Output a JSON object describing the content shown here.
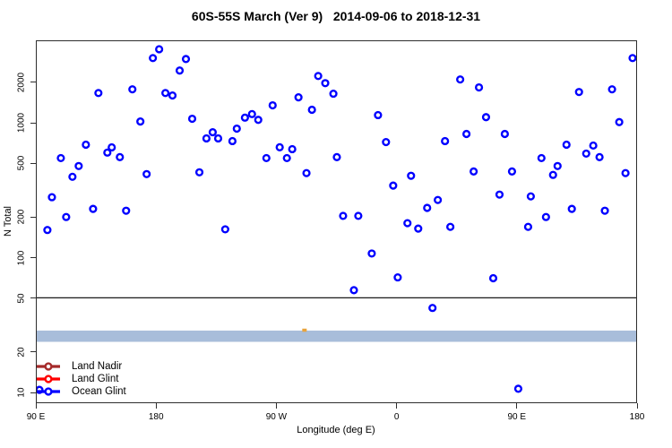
{
  "title": "60S-55S March (Ver 9)   2014-09-06 to 2018-12-31",
  "axes": {
    "x_label": "Longitude (deg E)",
    "y_label": "N Total",
    "x_tick_labels": [
      "90 E",
      "180",
      "90 W",
      "0",
      "90 E",
      "180"
    ],
    "x_tick_degs": [
      90,
      180,
      270,
      360,
      450,
      540
    ],
    "y_tick_values": [
      10,
      20,
      50,
      100,
      200,
      500,
      1000,
      2000
    ]
  },
  "legend": {
    "items": [
      {
        "label": "Land Nadir",
        "color": "#A52A2A"
      },
      {
        "label": "Land Glint",
        "color": "#FF0000"
      },
      {
        "label": "Ocean Glint",
        "color": "#0000FF"
      }
    ]
  },
  "annotations": {
    "hline_value": 50,
    "band": {
      "y_from": 23.5,
      "y_to": 28.5,
      "color": "#A8BDDA"
    },
    "partial_marker": {
      "deg": 291,
      "n": 28.8,
      "color": "#E8A33D"
    }
  },
  "chart_data": {
    "type": "scatter",
    "title": "60S-55S March (Ver 9)   2014-09-06 to 2018-12-31",
    "xlabel": "Longitude (deg E)",
    "ylabel": "N Total",
    "x_axis": {
      "start_deg": 90,
      "end_deg": 540,
      "tick_interval_deg": 90,
      "note": "longitude wraps eastward: 90E,180,90W,0,90E,180"
    },
    "y_scale": "log10",
    "ylim": [
      8.3,
      4100
    ],
    "grid": false,
    "legend_position": "bottom-left",
    "series": [
      {
        "name": "Land Nadir",
        "color": "#A52A2A",
        "points": []
      },
      {
        "name": "Land Glint",
        "color": "#FF0000",
        "points": []
      },
      {
        "name": "Ocean Glint",
        "color": "#0000FF",
        "points": [
          [
            181.9,
            3560
          ],
          [
            177.2,
            3060
          ],
          [
            202.0,
            3010
          ],
          [
            197.3,
            2470
          ],
          [
            136.3,
            1680
          ],
          [
            161.8,
            1790
          ],
          [
            186.6,
            1680
          ],
          [
            191.9,
            1610
          ],
          [
            167.8,
            1030
          ],
          [
            206.7,
            1080
          ],
          [
            222.1,
            857
          ],
          [
            217.4,
            771
          ],
          [
            226.2,
            771
          ],
          [
            240.2,
            912
          ],
          [
            236.9,
            736
          ],
          [
            126.9,
            692
          ],
          [
            143.0,
            604
          ],
          [
            146.3,
            661
          ],
          [
            152.4,
            559
          ],
          [
            108.1,
            550
          ],
          [
            121.5,
            480
          ],
          [
            116.8,
            399
          ],
          [
            172.5,
            418
          ],
          [
            212.1,
            431
          ],
          [
            101.4,
            281
          ],
          [
            132.3,
            230
          ],
          [
            157.1,
            223
          ],
          [
            112.1,
            200
          ],
          [
            98.0,
            160
          ],
          [
            231.5,
            162
          ],
          [
            301.3,
            2250
          ],
          [
            306.6,
            1990
          ],
          [
            312.7,
            1660
          ],
          [
            286.5,
            1560
          ],
          [
            267.1,
            1360
          ],
          [
            296.6,
            1260
          ],
          [
            251.6,
            1170
          ],
          [
            246.3,
            1100
          ],
          [
            256.3,
            1060
          ],
          [
            346.2,
            1150
          ],
          [
            352.2,
            724
          ],
          [
            272.4,
            662
          ],
          [
            281.8,
            641
          ],
          [
            277.8,
            550
          ],
          [
            262.4,
            550
          ],
          [
            315.3,
            559
          ],
          [
            292.5,
            425
          ],
          [
            371.0,
            406
          ],
          [
            357.6,
            343
          ],
          [
            383.1,
            234
          ],
          [
            320.0,
            204
          ],
          [
            331.4,
            204
          ],
          [
            368.3,
            180
          ],
          [
            376.4,
            164
          ],
          [
            537.3,
            3060
          ],
          [
            407.9,
            2120
          ],
          [
            422.0,
            1850
          ],
          [
            497.1,
            1710
          ],
          [
            521.9,
            1790
          ],
          [
            427.3,
            1110
          ],
          [
            527.3,
            1020
          ],
          [
            412.6,
            832
          ],
          [
            441.4,
            832
          ],
          [
            396.5,
            736
          ],
          [
            487.7,
            692
          ],
          [
            507.8,
            682
          ],
          [
            502.5,
            594
          ],
          [
            512.5,
            559
          ],
          [
            468.9,
            550
          ],
          [
            481.0,
            480
          ],
          [
            477.6,
            412
          ],
          [
            418.0,
            437
          ],
          [
            446.8,
            437
          ],
          [
            532.0,
            425
          ],
          [
            437.4,
            294
          ],
          [
            460.9,
            285
          ],
          [
            391.1,
            268
          ],
          [
            491.7,
            230
          ],
          [
            516.5,
            223
          ],
          [
            472.3,
            200
          ],
          [
            400.5,
            169
          ],
          [
            458.9,
            169
          ],
          [
            341.5,
            107
          ],
          [
            361.0,
            71
          ],
          [
            328.1,
            57
          ],
          [
            387.1,
            42
          ],
          [
            432.7,
            70
          ],
          [
            451.5,
            10.5
          ],
          [
            92.0,
            10.3
          ]
        ]
      }
    ]
  }
}
